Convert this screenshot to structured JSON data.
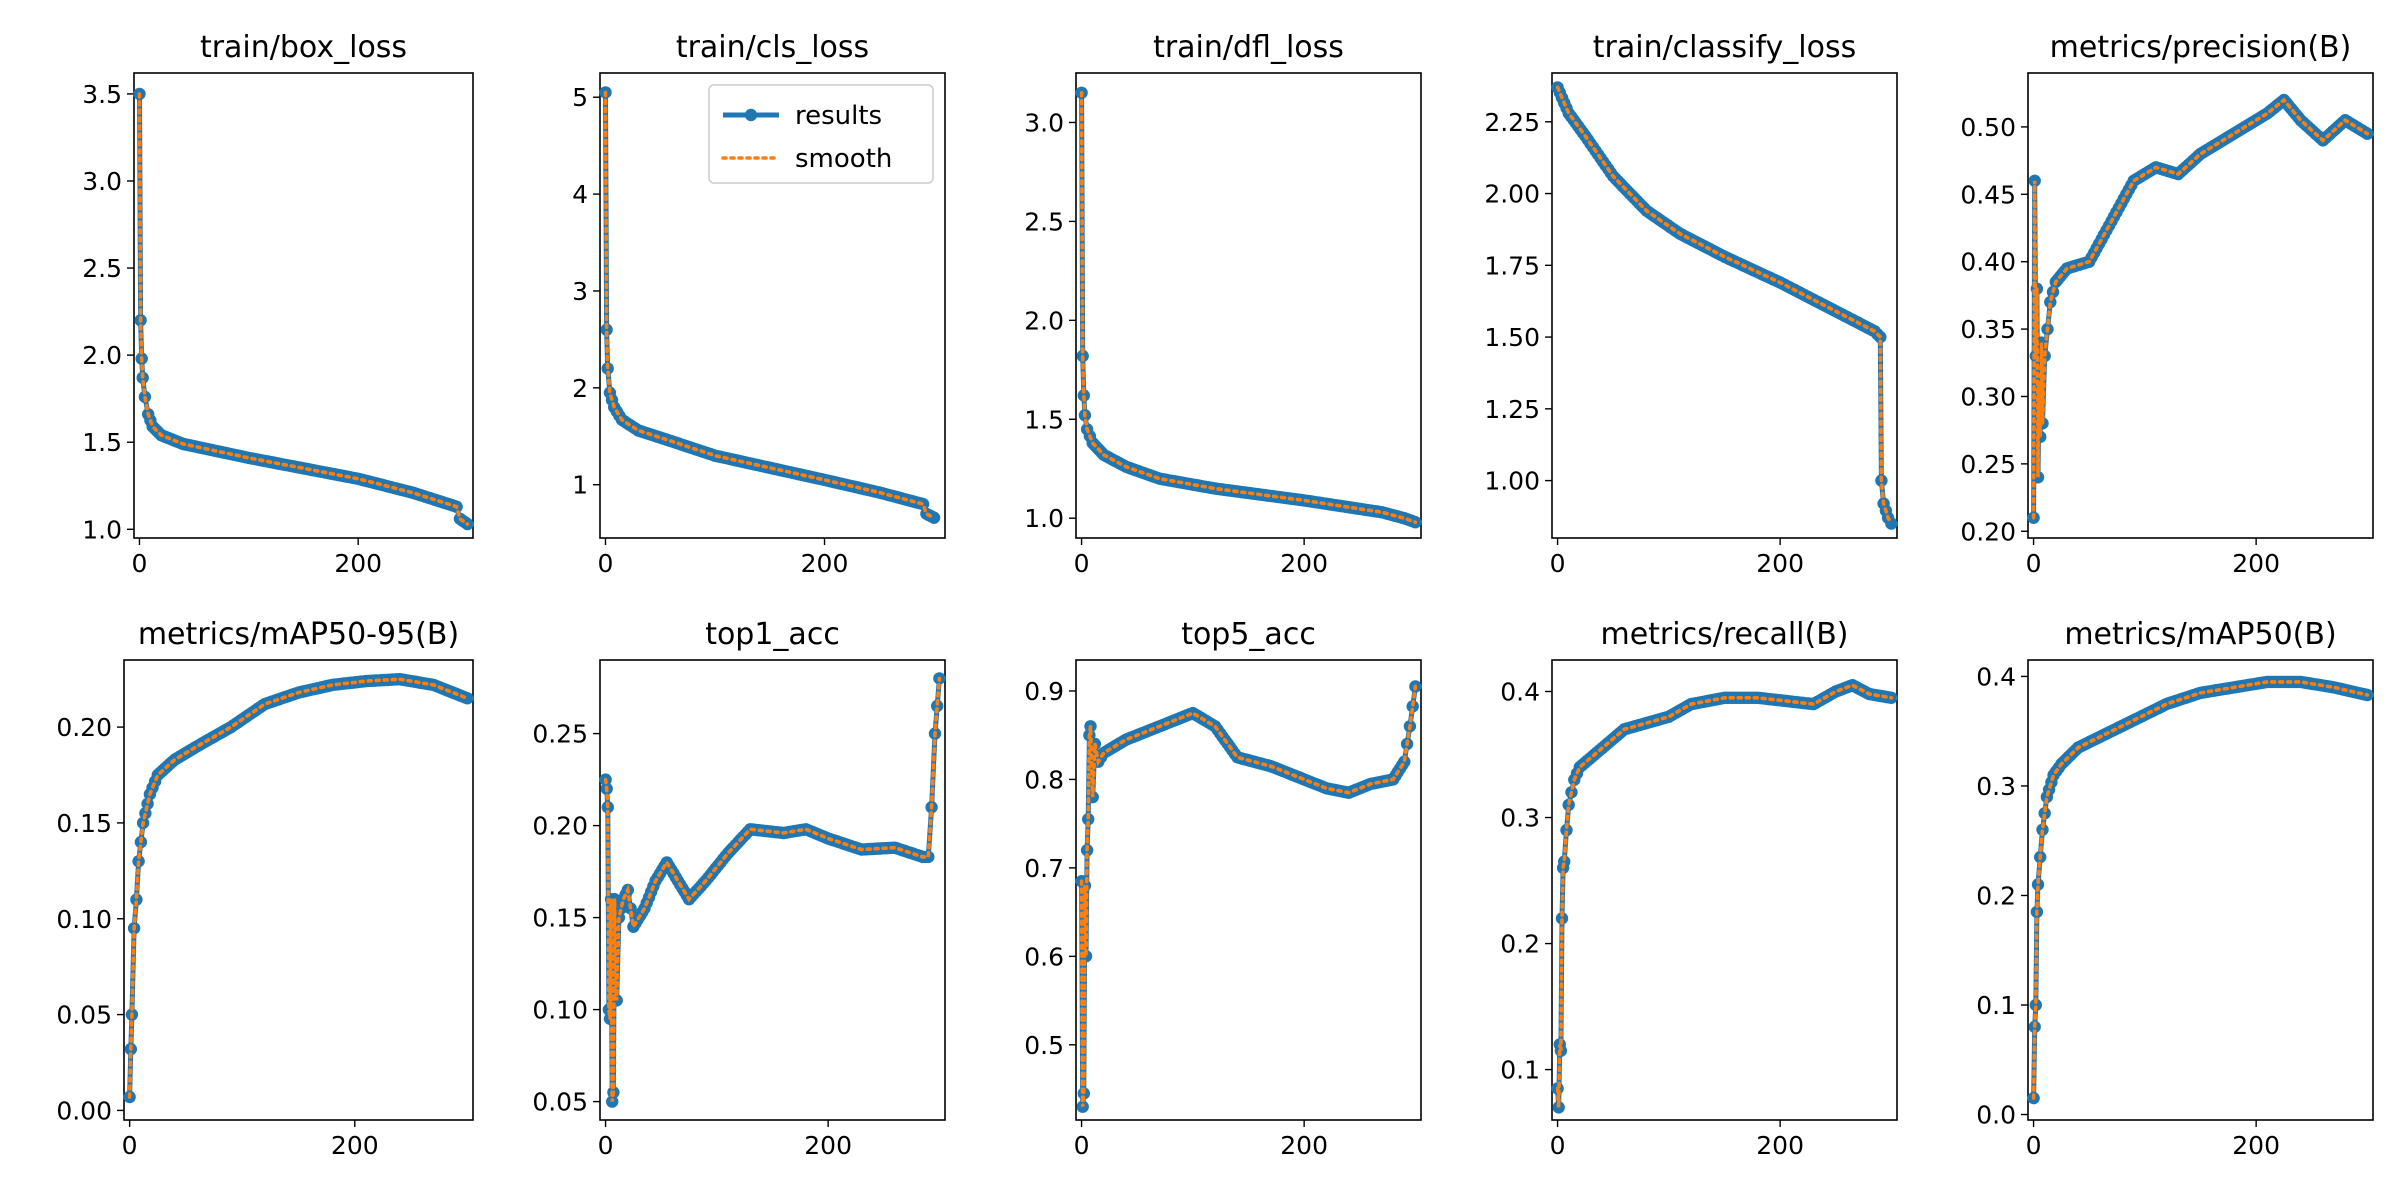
{
  "colors": {
    "results": "#1f77b4",
    "smooth": "#ff7f0e"
  },
  "legend": {
    "results_label": "results",
    "smooth_label": "smooth",
    "shown_in": "train/cls_loss",
    "placement": "upper right"
  },
  "chart_data": [
    {
      "type": "line",
      "title": "train/box_loss",
      "xlim": [
        -5,
        305
      ],
      "ylim": [
        0.95,
        3.62
      ],
      "xticks": [
        0,
        200
      ],
      "yticks": [
        1.0,
        1.5,
        2.0,
        2.5,
        3.0,
        3.5
      ],
      "ytick_labels": [
        "1.0",
        "1.5",
        "2.0",
        "2.5",
        "3.0",
        "3.5"
      ],
      "key_points": [
        [
          0,
          3.5
        ],
        [
          1,
          2.2
        ],
        [
          2,
          1.98
        ],
        [
          3,
          1.87
        ],
        [
          5,
          1.76
        ],
        [
          8,
          1.66
        ],
        [
          12,
          1.59
        ],
        [
          20,
          1.54
        ],
        [
          40,
          1.49
        ],
        [
          100,
          1.41
        ],
        [
          200,
          1.29
        ],
        [
          250,
          1.21
        ],
        [
          290,
          1.13
        ],
        [
          293,
          1.06
        ],
        [
          300,
          1.03
        ]
      ],
      "series": [
        {
          "name": "results"
        },
        {
          "name": "smooth"
        }
      ]
    },
    {
      "type": "line",
      "title": "train/cls_loss",
      "xlim": [
        -5,
        310
      ],
      "ylim": [
        0.45,
        5.25
      ],
      "xticks": [
        0,
        200
      ],
      "yticks": [
        1,
        2,
        3,
        4,
        5
      ],
      "ytick_labels": [
        "1",
        "2",
        "3",
        "4",
        "5"
      ],
      "key_points": [
        [
          0,
          5.05
        ],
        [
          1,
          2.6
        ],
        [
          2,
          2.2
        ],
        [
          4,
          1.95
        ],
        [
          8,
          1.8
        ],
        [
          15,
          1.67
        ],
        [
          30,
          1.56
        ],
        [
          60,
          1.45
        ],
        [
          100,
          1.3
        ],
        [
          200,
          1.05
        ],
        [
          250,
          0.92
        ],
        [
          290,
          0.8
        ],
        [
          293,
          0.7
        ],
        [
          300,
          0.66
        ]
      ],
      "series": [
        {
          "name": "results"
        },
        {
          "name": "smooth"
        }
      ]
    },
    {
      "type": "line",
      "title": "train/dfl_loss",
      "xlim": [
        -5,
        305
      ],
      "ylim": [
        0.9,
        3.25
      ],
      "xticks": [
        0,
        200
      ],
      "yticks": [
        1.0,
        1.5,
        2.0,
        2.5,
        3.0
      ],
      "ytick_labels": [
        "1.0",
        "1.5",
        "2.0",
        "2.5",
        "3.0"
      ],
      "key_points": [
        [
          0,
          3.15
        ],
        [
          1,
          1.82
        ],
        [
          2,
          1.62
        ],
        [
          3,
          1.52
        ],
        [
          5,
          1.45
        ],
        [
          10,
          1.38
        ],
        [
          20,
          1.32
        ],
        [
          40,
          1.26
        ],
        [
          70,
          1.2
        ],
        [
          120,
          1.15
        ],
        [
          200,
          1.09
        ],
        [
          270,
          1.03
        ],
        [
          290,
          1.0
        ],
        [
          300,
          0.98
        ]
      ],
      "series": [
        {
          "name": "results"
        },
        {
          "name": "smooth"
        }
      ]
    },
    {
      "type": "line",
      "title": "train/classify_loss",
      "xlim": [
        -5,
        305
      ],
      "ylim": [
        0.8,
        2.42
      ],
      "xticks": [
        0,
        200
      ],
      "yticks": [
        1.0,
        1.25,
        1.5,
        1.75,
        2.0,
        2.25
      ],
      "ytick_labels": [
        "1.00",
        "1.25",
        "1.50",
        "1.75",
        "2.00",
        "2.25"
      ],
      "key_points": [
        [
          0,
          2.37
        ],
        [
          10,
          2.28
        ],
        [
          25,
          2.2
        ],
        [
          50,
          2.06
        ],
        [
          80,
          1.94
        ],
        [
          110,
          1.86
        ],
        [
          150,
          1.78
        ],
        [
          200,
          1.69
        ],
        [
          250,
          1.59
        ],
        [
          285,
          1.52
        ],
        [
          290,
          1.5
        ],
        [
          291,
          1.0
        ],
        [
          293,
          0.92
        ],
        [
          297,
          0.87
        ],
        [
          300,
          0.85
        ]
      ],
      "series": [
        {
          "name": "results"
        },
        {
          "name": "smooth"
        }
      ]
    },
    {
      "type": "line",
      "title": "metrics/precision(B)",
      "xlim": [
        -5,
        305
      ],
      "ylim": [
        0.195,
        0.54
      ],
      "xticks": [
        0,
        200
      ],
      "yticks": [
        0.2,
        0.25,
        0.3,
        0.35,
        0.4,
        0.45,
        0.5
      ],
      "ytick_labels": [
        "0.20",
        "0.25",
        "0.30",
        "0.35",
        "0.40",
        "0.45",
        "0.50"
      ],
      "key_points": [
        [
          0,
          0.21
        ],
        [
          1,
          0.46
        ],
        [
          2,
          0.33
        ],
        [
          3,
          0.38
        ],
        [
          4,
          0.24
        ],
        [
          5,
          0.31
        ],
        [
          6,
          0.27
        ],
        [
          7,
          0.34
        ],
        [
          8,
          0.28
        ],
        [
          10,
          0.33
        ],
        [
          15,
          0.37
        ],
        [
          20,
          0.385
        ],
        [
          30,
          0.395
        ],
        [
          50,
          0.4
        ],
        [
          70,
          0.43
        ],
        [
          90,
          0.46
        ],
        [
          110,
          0.47
        ],
        [
          130,
          0.465
        ],
        [
          150,
          0.48
        ],
        [
          170,
          0.49
        ],
        [
          190,
          0.5
        ],
        [
          210,
          0.51
        ],
        [
          225,
          0.52
        ],
        [
          240,
          0.505
        ],
        [
          260,
          0.49
        ],
        [
          280,
          0.505
        ],
        [
          300,
          0.495
        ]
      ],
      "series": [
        {
          "name": "results"
        },
        {
          "name": "smooth"
        }
      ]
    },
    {
      "type": "line",
      "title": "metrics/mAP50-95(B)",
      "xlim": [
        -5,
        305
      ],
      "ylim": [
        -0.005,
        0.235
      ],
      "xticks": [
        0,
        200
      ],
      "yticks": [
        0.0,
        0.05,
        0.1,
        0.15,
        0.2
      ],
      "ytick_labels": [
        "0.00",
        "0.05",
        "0.10",
        "0.15",
        "0.20"
      ],
      "key_points": [
        [
          0,
          0.007
        ],
        [
          1,
          0.032
        ],
        [
          2,
          0.05
        ],
        [
          4,
          0.095
        ],
        [
          6,
          0.11
        ],
        [
          8,
          0.13
        ],
        [
          12,
          0.15
        ],
        [
          18,
          0.165
        ],
        [
          25,
          0.175
        ],
        [
          40,
          0.183
        ],
        [
          60,
          0.19
        ],
        [
          90,
          0.2
        ],
        [
          120,
          0.212
        ],
        [
          150,
          0.218
        ],
        [
          180,
          0.222
        ],
        [
          210,
          0.224
        ],
        [
          240,
          0.225
        ],
        [
          270,
          0.222
        ],
        [
          300,
          0.215
        ]
      ],
      "series": [
        {
          "name": "results"
        },
        {
          "name": "smooth"
        }
      ]
    },
    {
      "type": "line",
      "title": "top1_acc",
      "xlim": [
        -5,
        305
      ],
      "ylim": [
        0.04,
        0.29
      ],
      "xticks": [
        0,
        200
      ],
      "yticks": [
        0.05,
        0.1,
        0.15,
        0.2,
        0.25
      ],
      "ytick_labels": [
        "0.05",
        "0.10",
        "0.15",
        "0.20",
        "0.25"
      ],
      "key_points": [
        [
          0,
          0.225
        ],
        [
          1,
          0.22
        ],
        [
          2,
          0.21
        ],
        [
          3,
          0.1
        ],
        [
          4,
          0.095
        ],
        [
          5,
          0.16
        ],
        [
          6,
          0.05
        ],
        [
          7,
          0.055
        ],
        [
          8,
          0.16
        ],
        [
          10,
          0.105
        ],
        [
          12,
          0.15
        ],
        [
          16,
          0.16
        ],
        [
          20,
          0.165
        ],
        [
          25,
          0.145
        ],
        [
          35,
          0.155
        ],
        [
          45,
          0.17
        ],
        [
          55,
          0.18
        ],
        [
          65,
          0.17
        ],
        [
          75,
          0.16
        ],
        [
          90,
          0.17
        ],
        [
          110,
          0.185
        ],
        [
          130,
          0.198
        ],
        [
          160,
          0.196
        ],
        [
          180,
          0.198
        ],
        [
          200,
          0.193
        ],
        [
          230,
          0.187
        ],
        [
          260,
          0.188
        ],
        [
          285,
          0.183
        ],
        [
          290,
          0.183
        ],
        [
          293,
          0.21
        ],
        [
          296,
          0.25
        ],
        [
          300,
          0.28
        ]
      ],
      "series": [
        {
          "name": "results"
        },
        {
          "name": "smooth"
        }
      ]
    },
    {
      "type": "line",
      "title": "top5_acc",
      "xlim": [
        -5,
        305
      ],
      "ylim": [
        0.415,
        0.935
      ],
      "xticks": [
        0,
        200
      ],
      "yticks": [
        0.5,
        0.6,
        0.7,
        0.8,
        0.9
      ],
      "ytick_labels": [
        "0.5",
        "0.6",
        "0.7",
        "0.8",
        "0.9"
      ],
      "key_points": [
        [
          0,
          0.685
        ],
        [
          1,
          0.43
        ],
        [
          2,
          0.445
        ],
        [
          3,
          0.68
        ],
        [
          4,
          0.6
        ],
        [
          5,
          0.72
        ],
        [
          6,
          0.755
        ],
        [
          7,
          0.85
        ],
        [
          8,
          0.86
        ],
        [
          10,
          0.78
        ],
        [
          12,
          0.84
        ],
        [
          15,
          0.82
        ],
        [
          20,
          0.83
        ],
        [
          40,
          0.845
        ],
        [
          60,
          0.855
        ],
        [
          80,
          0.865
        ],
        [
          100,
          0.875
        ],
        [
          120,
          0.86
        ],
        [
          140,
          0.825
        ],
        [
          170,
          0.815
        ],
        [
          200,
          0.8
        ],
        [
          220,
          0.79
        ],
        [
          240,
          0.785
        ],
        [
          260,
          0.795
        ],
        [
          280,
          0.8
        ],
        [
          290,
          0.82
        ],
        [
          295,
          0.86
        ],
        [
          300,
          0.905
        ]
      ],
      "series": [
        {
          "name": "results"
        },
        {
          "name": "smooth"
        }
      ]
    },
    {
      "type": "line",
      "title": "metrics/recall(B)",
      "xlim": [
        -5,
        305
      ],
      "ylim": [
        0.06,
        0.425
      ],
      "xticks": [
        0,
        200
      ],
      "yticks": [
        0.1,
        0.2,
        0.3,
        0.4
      ],
      "ytick_labels": [
        "0.1",
        "0.2",
        "0.3",
        "0.4"
      ],
      "key_points": [
        [
          0,
          0.085
        ],
        [
          1,
          0.07
        ],
        [
          2,
          0.12
        ],
        [
          3,
          0.115
        ],
        [
          4,
          0.22
        ],
        [
          5,
          0.26
        ],
        [
          6,
          0.265
        ],
        [
          8,
          0.29
        ],
        [
          10,
          0.31
        ],
        [
          15,
          0.33
        ],
        [
          20,
          0.34
        ],
        [
          40,
          0.355
        ],
        [
          60,
          0.37
        ],
        [
          80,
          0.375
        ],
        [
          100,
          0.38
        ],
        [
          120,
          0.39
        ],
        [
          150,
          0.395
        ],
        [
          180,
          0.395
        ],
        [
          210,
          0.392
        ],
        [
          230,
          0.39
        ],
        [
          250,
          0.4
        ],
        [
          265,
          0.405
        ],
        [
          280,
          0.398
        ],
        [
          300,
          0.395
        ]
      ],
      "series": [
        {
          "name": "results"
        },
        {
          "name": "smooth"
        }
      ]
    },
    {
      "type": "line",
      "title": "metrics/mAP50(B)",
      "xlim": [
        -5,
        305
      ],
      "ylim": [
        -0.005,
        0.415
      ],
      "xticks": [
        0,
        200
      ],
      "yticks": [
        0.0,
        0.1,
        0.2,
        0.3,
        0.4
      ],
      "ytick_labels": [
        "0.0",
        "0.1",
        "0.2",
        "0.3",
        "0.4"
      ],
      "key_points": [
        [
          0,
          0.015
        ],
        [
          1,
          0.08
        ],
        [
          2,
          0.1
        ],
        [
          3,
          0.185
        ],
        [
          4,
          0.21
        ],
        [
          6,
          0.235
        ],
        [
          8,
          0.26
        ],
        [
          12,
          0.29
        ],
        [
          18,
          0.31
        ],
        [
          25,
          0.32
        ],
        [
          40,
          0.335
        ],
        [
          60,
          0.345
        ],
        [
          80,
          0.355
        ],
        [
          100,
          0.365
        ],
        [
          120,
          0.375
        ],
        [
          150,
          0.385
        ],
        [
          180,
          0.39
        ],
        [
          210,
          0.395
        ],
        [
          240,
          0.395
        ],
        [
          270,
          0.39
        ],
        [
          300,
          0.383
        ]
      ],
      "series": [
        {
          "name": "results"
        },
        {
          "name": "smooth"
        }
      ]
    }
  ]
}
